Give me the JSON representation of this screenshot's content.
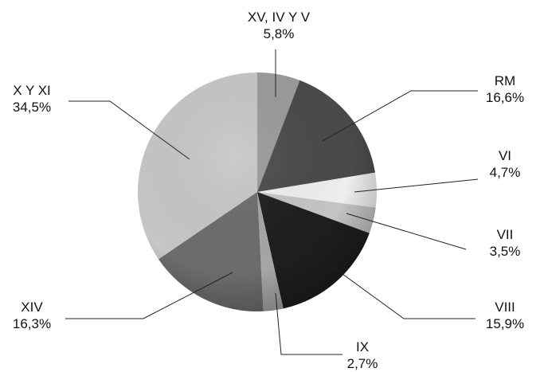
{
  "chart_data": {
    "type": "pie",
    "title": "",
    "slices": [
      {
        "name": "XV, IV Y V",
        "value": 5.8,
        "label": "5,8%",
        "color": "#9a9a9a"
      },
      {
        "name": "RM",
        "value": 16.6,
        "label": "16,6%",
        "color": "#4a4a4a"
      },
      {
        "name": "VI",
        "value": 4.7,
        "label": "4,7%",
        "color": "#eeeeee"
      },
      {
        "name": "VII",
        "value": 3.5,
        "label": "3,5%",
        "color": "#c4c4c4"
      },
      {
        "name": "VIII",
        "value": 15.9,
        "label": "15,9%",
        "color": "#1e1e1e"
      },
      {
        "name": "IX",
        "value": 2.7,
        "label": "2,7%",
        "color": "#a6a6a6"
      },
      {
        "name": "XIV",
        "value": 16.3,
        "label": "16,3%",
        "color": "#6c6c6c"
      },
      {
        "name": "X Y XI",
        "value": 34.5,
        "label": "34,5%",
        "color": "#c6c6c6"
      }
    ]
  }
}
